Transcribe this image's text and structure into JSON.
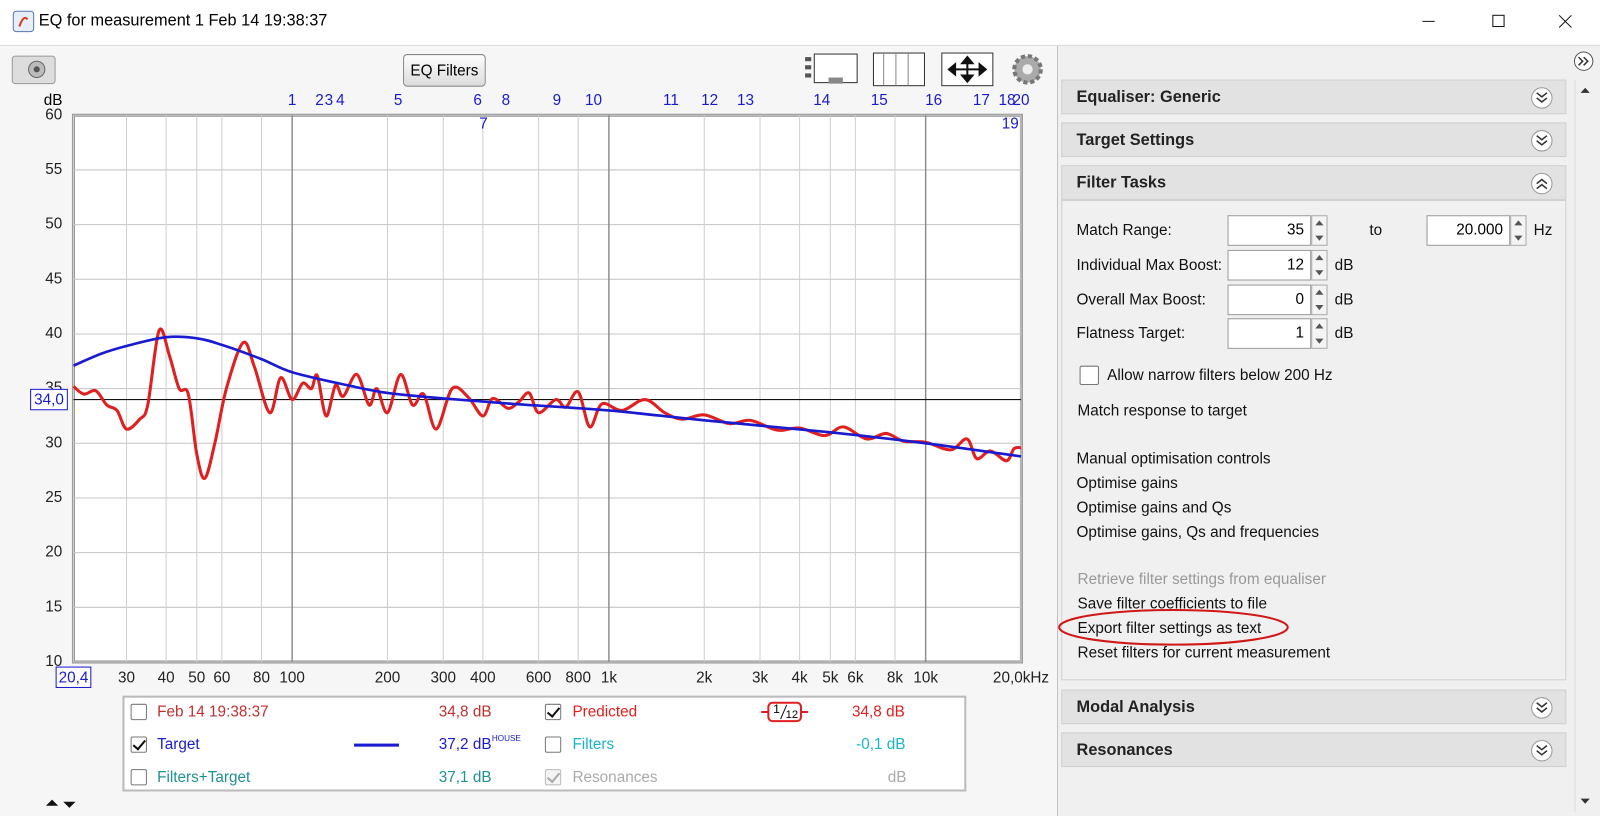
{
  "window": {
    "title": "EQ for measurement 1 Feb 14 19:38:37"
  },
  "toolbar": {
    "eq_filters_button": "EQ Filters"
  },
  "chart_data": {
    "type": "line",
    "y_label": "dB",
    "x_scale": "log",
    "grid": true,
    "xlim": [
      20.4,
      20000
    ],
    "ylim": [
      10,
      60
    ],
    "yticks": [
      10,
      15,
      20,
      25,
      30,
      35,
      40,
      45,
      50,
      55,
      60
    ],
    "xticks": [
      {
        "value": 20.4,
        "label": "20,4"
      },
      30,
      40,
      50,
      60,
      80,
      100,
      200,
      300,
      400,
      600,
      800,
      {
        "value": 1000,
        "label": "1k"
      },
      {
        "value": 2000,
        "label": "2k"
      },
      {
        "value": 3000,
        "label": "3k"
      },
      {
        "value": 4000,
        "label": "4k"
      },
      {
        "value": 5000,
        "label": "5k"
      },
      {
        "value": 6000,
        "label": "6k"
      },
      {
        "value": 8000,
        "label": "8k"
      },
      {
        "value": 10000,
        "label": "10k"
      },
      {
        "value": 20000,
        "label": "20,0kHz"
      }
    ],
    "reference_line": {
      "value": 34,
      "label": "34,0"
    },
    "filter_markers": {
      "labels": [
        "1",
        "2",
        "3",
        "4",
        "5",
        "6",
        "7",
        "8",
        "9",
        "10",
        "11",
        "12",
        "13",
        "14",
        "15",
        "16",
        "17",
        "18",
        "19",
        "20"
      ],
      "x": [
        100,
        122,
        130.6,
        142,
        216,
        385,
        402,
        473,
        685,
        894,
        1570,
        2080,
        2700,
        4700,
        7140,
        10600,
        15000,
        18070,
        18500,
        20000
      ]
    },
    "series": [
      {
        "name": "Predicted",
        "color": "#e02020",
        "checked": true,
        "readout": "34,8 dB",
        "smoothing": {
          "numerator": "1",
          "denominator": "12"
        },
        "x": [
          20.4,
          22,
          24,
          26,
          28,
          30,
          33,
          35,
          38,
          41,
          44,
          47,
          50,
          53,
          57,
          62,
          70,
          76,
          85,
          92,
          100,
          108,
          115,
          120,
          128,
          137,
          145,
          160,
          175,
          185,
          200,
          220,
          240,
          260,
          285,
          320,
          360,
          400,
          430,
          480,
          520,
          560,
          600,
          680,
          730,
          800,
          870,
          950,
          1100,
          1300,
          1500,
          1700,
          2000,
          2400,
          2800,
          3400,
          4000,
          4800,
          5500,
          6500,
          7500,
          8500,
          10000,
          12000,
          13500,
          14500,
          16000,
          18000,
          19000,
          20000
        ],
        "values": [
          35.2,
          34.5,
          34.8,
          33.5,
          33.0,
          31.3,
          32.2,
          33.5,
          40.3,
          38,
          35,
          34.5,
          29,
          26.8,
          30,
          35,
          39.2,
          37,
          32.8,
          36,
          34,
          35.5,
          35,
          36.2,
          32.5,
          35.3,
          34.3,
          36.3,
          33.5,
          35,
          32.8,
          36.3,
          33.5,
          34.5,
          31.3,
          35,
          34.2,
          32.5,
          34.1,
          33.2,
          33.8,
          34.6,
          32.8,
          34,
          33.3,
          34.7,
          31.5,
          33.6,
          33.0,
          34.0,
          32.8,
          32.2,
          32.6,
          31.8,
          32.1,
          31.2,
          31.4,
          30.7,
          31.5,
          30.4,
          30.9,
          30.2,
          30.1,
          29.4,
          30.4,
          28.6,
          29.3,
          28.4,
          29.5,
          29.6
        ]
      },
      {
        "name": "Target",
        "color": "#1a1ad0",
        "checked": true,
        "readout": "37,2 dB",
        "superscript": "HOUSE",
        "x": [
          20.4,
          25,
          30,
          40,
          50,
          60,
          80,
          100,
          150,
          200,
          300,
          500,
          1000,
          2000,
          5000,
          10000,
          20000
        ],
        "values": [
          37.1,
          38.2,
          38.9,
          39.7,
          39.6,
          39.0,
          37.7,
          36.5,
          35.3,
          34.6,
          34.1,
          33.6,
          33.0,
          32.1,
          31.0,
          30.0,
          28.8
        ]
      }
    ]
  },
  "legend": {
    "measurement": {
      "name": "Feb 14 19:38:37",
      "checked": false,
      "readout": "34,8 dB"
    },
    "filters": {
      "name": "Filters",
      "checked": false,
      "readout": "-0,1 dB"
    },
    "filters_target": {
      "name": "Filters+Target",
      "checked": false,
      "readout": "37,1 dB"
    },
    "resonances": {
      "name": "Resonances",
      "checked": true,
      "readout": "dB"
    }
  },
  "panel": {
    "sections_top": [
      "Equaliser: Generic",
      "Target Settings",
      "Filter Tasks"
    ],
    "match_range": {
      "label": "Match Range:",
      "value": 35,
      "to": "to",
      "value2": "20.000",
      "unit": "Hz"
    },
    "fields": [
      {
        "label": "Individual Max Boost:",
        "value": 12,
        "unit": "dB"
      },
      {
        "label": "Overall Max Boost:",
        "value": 0,
        "unit": "dB"
      },
      {
        "label": "Flatness Target:",
        "value": 1,
        "unit": "dB"
      }
    ],
    "narrow_checkbox": "Allow narrow filters below 200 Hz",
    "match_action": "Match response to target",
    "optimise_actions": [
      "Manual optimisation controls",
      "Optimise gains",
      "Optimise gains and Qs",
      "Optimise gains, Qs and frequencies"
    ],
    "file_actions": [
      {
        "text": "Retrieve filter settings from equaliser",
        "disabled": true
      },
      {
        "text": "Save filter coefficients to file",
        "disabled": false
      },
      {
        "text": "Export filter settings as text",
        "disabled": false
      },
      {
        "text": "Reset filters for current measurement",
        "disabled": false
      }
    ],
    "sections_bottom": [
      "Modal Analysis",
      "Resonances"
    ]
  }
}
